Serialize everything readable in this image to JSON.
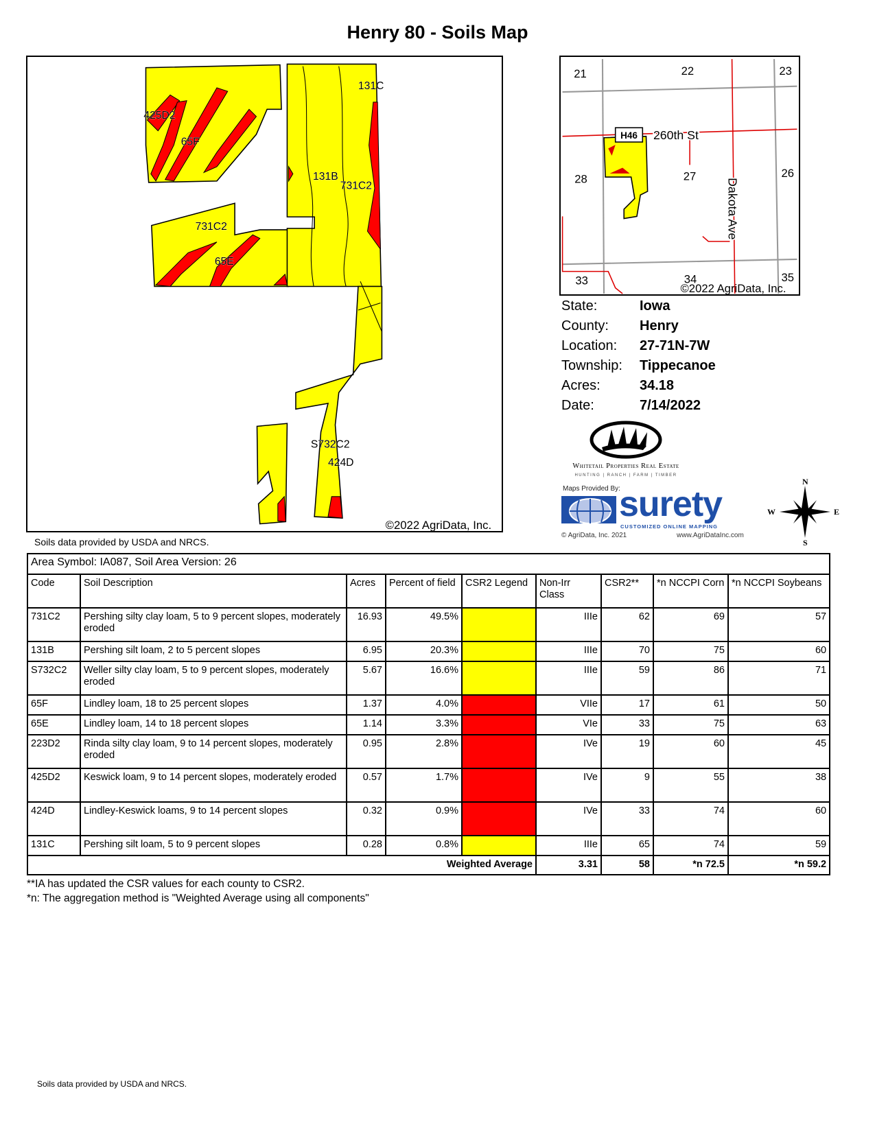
{
  "title": "Henry 80 - Soils Map",
  "main_map": {
    "labels": [
      "425D2",
      "65F",
      "131C",
      "131B",
      "731C2",
      "731C2",
      "65E",
      "S732C2",
      "424D"
    ],
    "copyright": "©2022 AgriData, Inc.",
    "colors": {
      "yellow": "#FFFF00",
      "red": "#FF0000"
    }
  },
  "locator_map": {
    "sections": [
      "21",
      "22",
      "23",
      "28",
      "27",
      "26",
      "33",
      "34",
      "35"
    ],
    "road_badge": "H46",
    "road_260th": "260th St",
    "road_dakota": "Dakota Ave",
    "copyright": "©2022 AgriData, Inc."
  },
  "info": {
    "state_label": "State:",
    "state": "Iowa",
    "county_label": "County:",
    "county": "Henry",
    "location_label": "Location:",
    "location": "27-71N-7W",
    "township_label": "Township:",
    "township": "Tippecanoe",
    "acres_label": "Acres:",
    "acres": "34.18",
    "date_label": "Date:",
    "date": "7/14/2022"
  },
  "logos": {
    "whitetail_name": "Whitetail Properties Real Estate",
    "whitetail_tagline": "HUNTING | RANCH | FARM | TIMBER",
    "maps_provided_by": "Maps Provided By:",
    "surety": "surety",
    "surety_tagline": "CUSTOMIZED ONLINE MAPPING",
    "surety_copyright": "© AgriData, Inc. 2021",
    "surety_url": "www.AgriDataInc.com"
  },
  "compass": {
    "n": "N",
    "s": "S",
    "e": "E",
    "w": "W"
  },
  "source_note": "Soils data provided by USDA and NRCS.",
  "table": {
    "area_symbol": "Area Symbol: IA087, Soil Area Version: 26",
    "headers": [
      "Code",
      "Soil Description",
      "Acres",
      "Percent of field",
      "CSR2 Legend",
      "Non-Irr Class",
      "CSR2**",
      "*n NCCPI Corn",
      "*n NCCPI Soybeans"
    ],
    "rows": [
      {
        "code": "731C2",
        "desc": "Pershing silty clay loam, 5 to 9 percent slopes, moderately eroded",
        "acres": "16.93",
        "pct": "49.5%",
        "legend": "#FFFF00",
        "cls": "IIIe",
        "csr2": "62",
        "corn": "69",
        "soy": "57",
        "tall": true
      },
      {
        "code": "131B",
        "desc": "Pershing silt loam, 2 to 5 percent slopes",
        "acres": "6.95",
        "pct": "20.3%",
        "legend": "#FFFF00",
        "cls": "IIIe",
        "csr2": "70",
        "corn": "75",
        "soy": "60",
        "tall": false
      },
      {
        "code": "S732C2",
        "desc": "Weller silty clay loam, 5 to 9 percent slopes, moderately eroded",
        "acres": "5.67",
        "pct": "16.6%",
        "legend": "#FFFF00",
        "cls": "IIIe",
        "csr2": "59",
        "corn": "86",
        "soy": "71",
        "tall": true
      },
      {
        "code": "65F",
        "desc": "Lindley loam, 18 to 25 percent slopes",
        "acres": "1.37",
        "pct": "4.0%",
        "legend": "#FF0000",
        "cls": "VIIe",
        "csr2": "17",
        "corn": "61",
        "soy": "50",
        "tall": false
      },
      {
        "code": "65E",
        "desc": "Lindley loam, 14 to 18 percent slopes",
        "acres": "1.14",
        "pct": "3.3%",
        "legend": "#FF0000",
        "cls": "VIe",
        "csr2": "33",
        "corn": "75",
        "soy": "63",
        "tall": false
      },
      {
        "code": "223D2",
        "desc": "Rinda silty clay loam, 9 to 14 percent slopes, moderately eroded",
        "acres": "0.95",
        "pct": "2.8%",
        "legend": "#FF0000",
        "cls": "IVe",
        "csr2": "19",
        "corn": "60",
        "soy": "45",
        "tall": true
      },
      {
        "code": "425D2",
        "desc": "Keswick loam, 9 to 14 percent slopes, moderately eroded",
        "acres": "0.57",
        "pct": "1.7%",
        "legend": "#FF0000",
        "cls": "IVe",
        "csr2": "9",
        "corn": "55",
        "soy": "38",
        "tall": true
      },
      {
        "code": "424D",
        "desc": "Lindley-Keswick loams, 9 to 14 percent slopes",
        "acres": "0.32",
        "pct": "0.9%",
        "legend": "#FF0000",
        "cls": "IVe",
        "csr2": "33",
        "corn": "74",
        "soy": "60",
        "tall": true
      },
      {
        "code": "131C",
        "desc": "Pershing silt loam, 5 to 9 percent slopes",
        "acres": "0.28",
        "pct": "0.8%",
        "legend": "#FFFF00",
        "cls": "IIIe",
        "csr2": "65",
        "corn": "74",
        "soy": "59",
        "tall": false
      }
    ],
    "footer": {
      "label": "Weighted Average",
      "cls": "3.31",
      "csr2": "58",
      "corn": "*n 72.5",
      "soy": "*n 59.2"
    }
  },
  "notes": [
    "**IA has updated the CSR values for each county to CSR2.",
    "*n: The aggregation method is \"Weighted Average using all components\""
  ]
}
